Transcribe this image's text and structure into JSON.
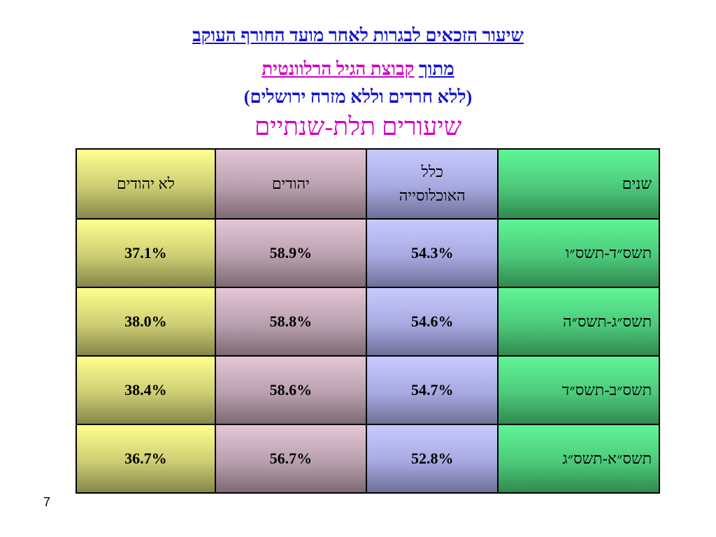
{
  "title": {
    "line1": "שיעור הזכאים לבגרות לאחר מועד החורף העוקב",
    "line2_a": "מתוך",
    "line2_b": "קבוצת הגיל הרלוונטית",
    "line3": "(ללא חרדים וללא מזרח ירושלים)",
    "line4": "שיעורים תלת-שנתיים"
  },
  "table": {
    "headers": {
      "years": "שנים",
      "all_line1": "כלל",
      "all_line2": "האוכלוסייה",
      "jews": "יהודים",
      "non_jews": "לא יהודים"
    },
    "rows": [
      {
        "years": "תשס״ד-תשס״ו",
        "all": "54.3%",
        "jews": "58.9%",
        "non_jews": "37.1%"
      },
      {
        "years": "תשס״ג-תשס״ה",
        "all": "54.6%",
        "jews": "58.8%",
        "non_jews": "38.0%"
      },
      {
        "years": "תשס״ב-תשס״ד",
        "all": "54.7%",
        "jews": "58.6%",
        "non_jews": "38.4%"
      },
      {
        "years": "תשס״א-תשס״ג",
        "all": "52.8%",
        "jews": "56.7%",
        "non_jews": "36.7%"
      }
    ]
  },
  "slide_number": "7"
}
